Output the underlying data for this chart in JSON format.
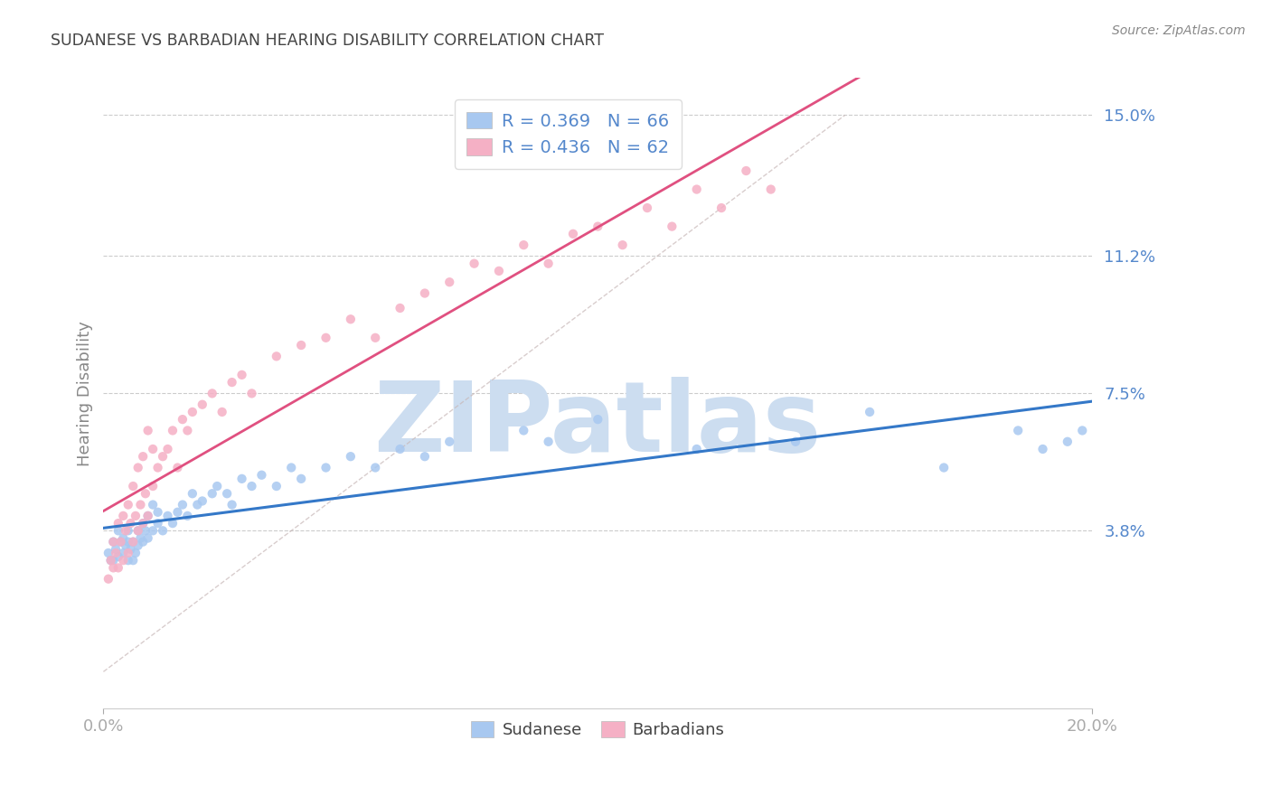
{
  "title": "SUDANESE VS BARBADIAN HEARING DISABILITY CORRELATION CHART",
  "source": "Source: ZipAtlas.com",
  "xlim": [
    0.0,
    20.0
  ],
  "ylim": [
    -1.0,
    16.0
  ],
  "yticks": [
    3.8,
    7.5,
    11.2,
    15.0
  ],
  "xticks": [
    0.0,
    20.0
  ],
  "sudanese_x": [
    0.1,
    0.15,
    0.2,
    0.2,
    0.25,
    0.3,
    0.3,
    0.35,
    0.4,
    0.4,
    0.45,
    0.5,
    0.5,
    0.5,
    0.55,
    0.6,
    0.6,
    0.65,
    0.7,
    0.7,
    0.75,
    0.8,
    0.8,
    0.85,
    0.9,
    0.9,
    1.0,
    1.0,
    1.1,
    1.1,
    1.2,
    1.3,
    1.4,
    1.5,
    1.6,
    1.7,
    1.8,
    1.9,
    2.0,
    2.2,
    2.3,
    2.5,
    2.6,
    2.8,
    3.0,
    3.2,
    3.5,
    3.8,
    4.0,
    4.5,
    5.0,
    5.5,
    6.0,
    6.5,
    7.0,
    8.5,
    9.0,
    10.0,
    12.0,
    14.0,
    15.5,
    17.0,
    18.5,
    19.0,
    19.5,
    19.8
  ],
  "sudanese_y": [
    3.2,
    3.0,
    3.5,
    3.0,
    3.3,
    3.1,
    3.8,
    3.5,
    3.2,
    3.6,
    3.4,
    3.0,
    3.5,
    3.8,
    3.3,
    3.5,
    3.0,
    3.2,
    3.8,
    3.4,
    3.6,
    3.5,
    4.0,
    3.8,
    3.6,
    4.2,
    3.8,
    4.5,
    4.0,
    4.3,
    3.8,
    4.2,
    4.0,
    4.3,
    4.5,
    4.2,
    4.8,
    4.5,
    4.6,
    4.8,
    5.0,
    4.8,
    4.5,
    5.2,
    5.0,
    5.3,
    5.0,
    5.5,
    5.2,
    5.5,
    5.8,
    5.5,
    6.0,
    5.8,
    6.2,
    6.5,
    6.2,
    6.8,
    6.0,
    6.2,
    7.0,
    5.5,
    6.5,
    6.0,
    6.2,
    6.5
  ],
  "barbadian_x": [
    0.1,
    0.15,
    0.2,
    0.2,
    0.25,
    0.3,
    0.3,
    0.35,
    0.4,
    0.4,
    0.45,
    0.5,
    0.5,
    0.55,
    0.6,
    0.6,
    0.65,
    0.7,
    0.7,
    0.75,
    0.8,
    0.8,
    0.85,
    0.9,
    0.9,
    1.0,
    1.0,
    1.1,
    1.2,
    1.3,
    1.4,
    1.5,
    1.6,
    1.7,
    1.8,
    2.0,
    2.2,
    2.4,
    2.6,
    2.8,
    3.0,
    3.5,
    4.0,
    4.5,
    5.0,
    5.5,
    6.0,
    6.5,
    7.0,
    7.5,
    8.0,
    8.5,
    9.0,
    9.5,
    10.0,
    10.5,
    11.0,
    11.5,
    12.0,
    12.5,
    13.0,
    13.5
  ],
  "barbadian_y": [
    2.5,
    3.0,
    2.8,
    3.5,
    3.2,
    2.8,
    4.0,
    3.5,
    3.0,
    4.2,
    3.8,
    3.2,
    4.5,
    4.0,
    3.5,
    5.0,
    4.2,
    3.8,
    5.5,
    4.5,
    4.0,
    5.8,
    4.8,
    4.2,
    6.5,
    5.0,
    6.0,
    5.5,
    5.8,
    6.0,
    6.5,
    5.5,
    6.8,
    6.5,
    7.0,
    7.2,
    7.5,
    7.0,
    7.8,
    8.0,
    7.5,
    8.5,
    8.8,
    9.0,
    9.5,
    9.0,
    9.8,
    10.2,
    10.5,
    11.0,
    10.8,
    11.5,
    11.0,
    11.8,
    12.0,
    11.5,
    12.5,
    12.0,
    13.0,
    12.5,
    13.5,
    13.0
  ],
  "sudanese_color": "#a8c8f0",
  "barbadian_color": "#f5b0c5",
  "sudanese_line_color": "#3478c8",
  "barbadian_line_color": "#e05080",
  "ref_line_color": "#c8b8b8",
  "title_color": "#444444",
  "axis_label_color": "#5588cc",
  "ylabel_color": "#888888",
  "grid_color": "#cccccc",
  "grid_style": "--",
  "legend_R1": "R = 0.369",
  "legend_N1": "N = 66",
  "legend_R2": "R = 0.436",
  "legend_N2": "N = 62",
  "watermark": "ZIPatlas",
  "watermark_color": "#ccddf0",
  "source_color": "#888888"
}
